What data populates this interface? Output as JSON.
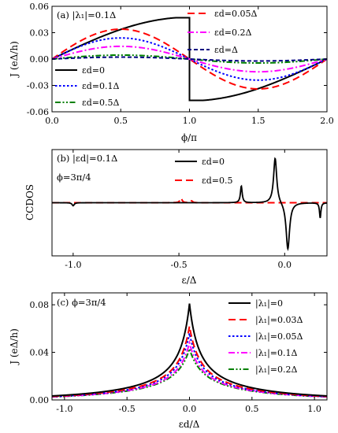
{
  "chart_data": [
    {
      "id": "a",
      "type": "line",
      "annotation": "(a)  |λ₁|=0.1Δ",
      "xlabel": "ϕ/π",
      "ylabel": "J  (eΔ/h)",
      "xlim": [
        0,
        2
      ],
      "ylim": [
        -0.06,
        0.06
      ],
      "xticks": [
        "0.0",
        "0.5",
        "1.0",
        "1.5",
        "2.0"
      ],
      "yticks": [
        "-0.06",
        "-0.03",
        "0.00",
        "0.03",
        "0.06"
      ],
      "series": [
        {
          "name": "εd=0",
          "color": "#000000",
          "dash": "solid",
          "peak": 0.047,
          "shape": "jump"
        },
        {
          "name": "εd=0.05Δ",
          "color": "#ff0000",
          "dash": "long-dash",
          "peak": 0.034,
          "shape": "sin"
        },
        {
          "name": "εd=0.1Δ",
          "color": "#0000ff",
          "dash": "dot",
          "peak": 0.024,
          "shape": "sin"
        },
        {
          "name": "εd=0.2Δ",
          "color": "#ff00ff",
          "dash": "dash-dot",
          "peak": 0.0145,
          "shape": "sin"
        },
        {
          "name": "εd=0.5Δ",
          "color": "#008000",
          "dash": "dash-dot-dot",
          "peak": 0.0045,
          "shape": "sin"
        },
        {
          "name": "εd=Δ",
          "color": "#000080",
          "dash": "short-dash",
          "peak": 0.0022,
          "shape": "sin"
        }
      ]
    },
    {
      "id": "b",
      "type": "line",
      "annotation_line1": "(b)  |εd|=0.1Δ",
      "annotation_line2": "ϕ=3π/4",
      "xlabel": "ε/Δ",
      "ylabel": "CCDOS",
      "xlim": [
        -1.1,
        0.2
      ],
      "ylim": [
        -0.35,
        0.35
      ],
      "xticks": [
        "-1.0",
        "-0.5",
        "0.0"
      ],
      "series": [
        {
          "name": "εd=0",
          "color": "#000000",
          "dash": "solid"
        },
        {
          "name": "εd=0.5",
          "color": "#ff0000",
          "dash": "long-dash"
        }
      ]
    },
    {
      "id": "c",
      "type": "line",
      "annotation": "(c)  ϕ=3π/4",
      "xlabel": "εd/Δ",
      "ylabel": "J  (eΔ/h)",
      "xlim": [
        -1.1,
        1.1
      ],
      "ylim": [
        0,
        0.09
      ],
      "xticks": [
        "-1.0",
        "-0.5",
        "0.0",
        "0.5",
        "1.0"
      ],
      "yticks": [
        "0.00",
        "0.04",
        "0.08"
      ],
      "series": [
        {
          "name": "|λ₁|=0",
          "color": "#000000",
          "dash": "solid",
          "peak": 0.081,
          "width": 0.085
        },
        {
          "name": "|λ₁|=0.03Δ",
          "color": "#ff0000",
          "dash": "long-dash",
          "peak": 0.062,
          "width": 0.1
        },
        {
          "name": "|λ₁|=0.05Δ",
          "color": "#0000ff",
          "dash": "dot",
          "peak": 0.056,
          "width": 0.105
        },
        {
          "name": "|λ₁|=0.1Δ",
          "color": "#ff00ff",
          "dash": "dash-dot",
          "peak": 0.048,
          "width": 0.115
        },
        {
          "name": "|λ₁|=0.2Δ",
          "color": "#008000",
          "dash": "dash-dot-dot",
          "peak": 0.043,
          "width": 0.125
        }
      ]
    }
  ]
}
